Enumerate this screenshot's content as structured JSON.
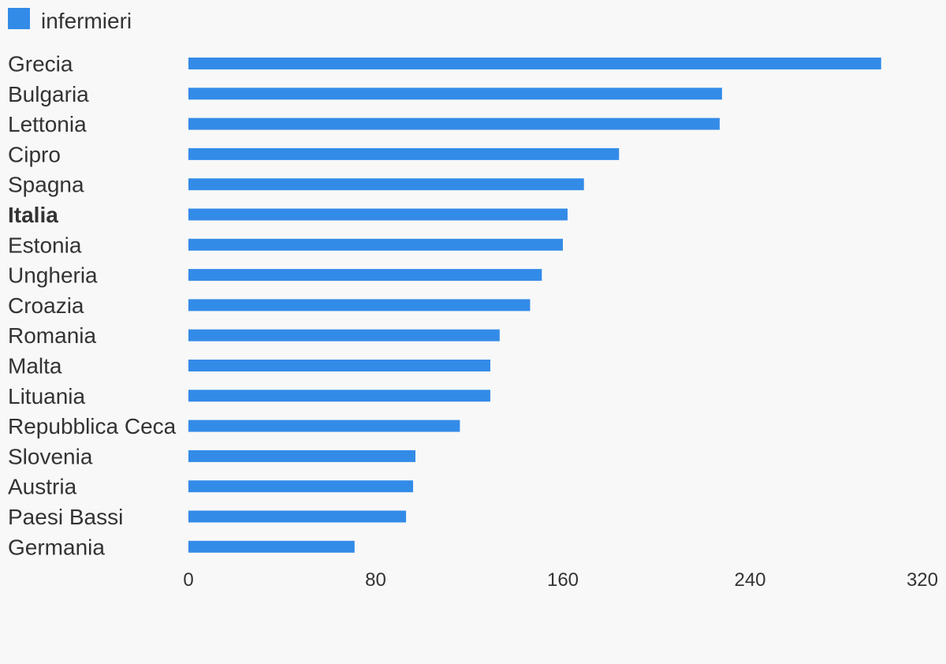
{
  "chart_data": {
    "type": "bar",
    "orientation": "horizontal",
    "categories": [
      "Grecia",
      "Bulgaria",
      "Lettonia",
      "Cipro",
      "Spagna",
      "Italia",
      "Estonia",
      "Ungheria",
      "Croazia",
      "Romania",
      "Malta",
      "Lituania",
      "Repubblica Ceca",
      "Slovenia",
      "Austria",
      "Paesi Bassi",
      "Germania"
    ],
    "highlighted_category": "Italia",
    "series": [
      {
        "name": "infermieri",
        "color": "#338be8",
        "values": [
          296,
          228,
          227,
          184,
          169,
          162,
          160,
          151,
          146,
          133,
          129,
          129,
          116,
          97,
          96,
          93,
          71
        ]
      }
    ],
    "xlim": [
      0,
      320
    ],
    "xticks": [
      "0",
      "80",
      "160",
      "240",
      "320"
    ],
    "legend": "top-left",
    "grid": false
  }
}
